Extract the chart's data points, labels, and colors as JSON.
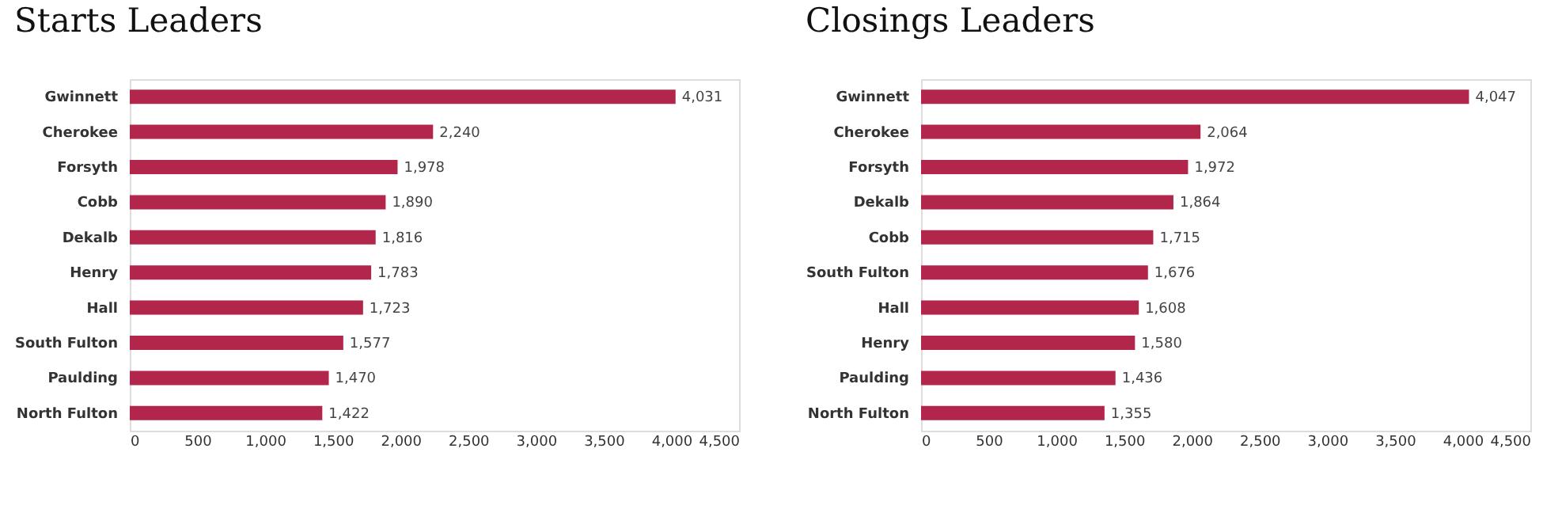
{
  "chart_data": [
    {
      "type": "bar",
      "orientation": "horizontal",
      "title": "Starts Leaders",
      "categories": [
        "Gwinnett",
        "Cherokee",
        "Forsyth",
        "Cobb",
        "Dekalb",
        "Henry",
        "Hall",
        "South Fulton",
        "Paulding",
        "North Fulton"
      ],
      "values": [
        4031,
        2240,
        1978,
        1890,
        1816,
        1783,
        1723,
        1577,
        1470,
        1422
      ],
      "value_labels": [
        "4,031",
        "2,240",
        "1,978",
        "1,890",
        "1,816",
        "1,783",
        "1,723",
        "1,577",
        "1,470",
        "1,422"
      ],
      "color": "#b3264b",
      "xlim": [
        0,
        4500
      ],
      "xticks": [
        {
          "value": 0,
          "label": "0"
        },
        {
          "value": 500,
          "label": "500"
        },
        {
          "value": 1000,
          "label": "1,000"
        },
        {
          "value": 1500,
          "label": "1,500"
        },
        {
          "value": 2000,
          "label": "2,000"
        },
        {
          "value": 2500,
          "label": "2,500"
        },
        {
          "value": 3000,
          "label": "3,000"
        },
        {
          "value": 3500,
          "label": "3,500"
        },
        {
          "value": 4000,
          "label": "4,000"
        },
        {
          "value": 4500,
          "label": "4,500"
        }
      ],
      "data_labels": true,
      "grid": false
    },
    {
      "type": "bar",
      "orientation": "horizontal",
      "title": "Closings Leaders",
      "categories": [
        "Gwinnett",
        "Cherokee",
        "Forsyth",
        "Dekalb",
        "Cobb",
        "South Fulton",
        "Hall",
        "Henry",
        "Paulding",
        "North Fulton"
      ],
      "values": [
        4047,
        2064,
        1972,
        1864,
        1715,
        1676,
        1608,
        1580,
        1436,
        1355
      ],
      "value_labels": [
        "4,047",
        "2,064",
        "1,972",
        "1,864",
        "1,715",
        "1,676",
        "1,608",
        "1,580",
        "1,436",
        "1,355"
      ],
      "color": "#b3264b",
      "xlim": [
        0,
        4500
      ],
      "xticks": [
        {
          "value": 0,
          "label": "0"
        },
        {
          "value": 500,
          "label": "500"
        },
        {
          "value": 1000,
          "label": "1,000"
        },
        {
          "value": 1500,
          "label": "1,500"
        },
        {
          "value": 2000,
          "label": "2,000"
        },
        {
          "value": 2500,
          "label": "2,500"
        },
        {
          "value": 3000,
          "label": "3,000"
        },
        {
          "value": 3500,
          "label": "3,500"
        },
        {
          "value": 4000,
          "label": "4,000"
        },
        {
          "value": 4500,
          "label": "4,500"
        }
      ],
      "data_labels": true,
      "grid": false
    }
  ]
}
